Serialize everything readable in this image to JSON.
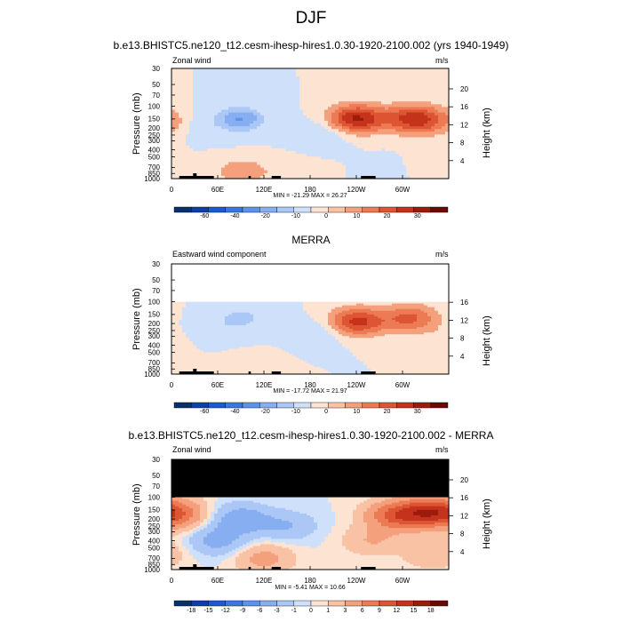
{
  "figure_title": "DJF",
  "panels": [
    {
      "title": "b.e13.BHISTC5.ne120_t12.cesm-ihesp-hires1.0.30-1920-2100.002 (yrs 1940-1949)",
      "left_string": "Zonal wind",
      "right_string": "m/s",
      "stats": "MIN = -21.29  MAX = 26.27",
      "ylabel_left": "Pressure (mb)",
      "ylabel_right": "Height (km)",
      "pressure_ticks": [
        "30",
        "50",
        "70",
        "100",
        "150",
        "200",
        "250",
        "300",
        "400",
        "500",
        "700",
        "850",
        "1000"
      ],
      "height_ticks": [
        "4",
        "8",
        "12",
        "16",
        "20"
      ],
      "x_ticks": [
        "0",
        "60E",
        "120E",
        "180",
        "120W",
        "60W"
      ],
      "colorbar_labels": [
        "-60",
        "-40",
        "-20",
        "-10",
        "0",
        "10",
        "20",
        "30"
      ]
    },
    {
      "title": "MERRA",
      "left_string": "Eastward wind component",
      "right_string": "m/s",
      "stats": "MIN = -17.72  MAX = 21.97",
      "ylabel_left": "Pressure (mb)",
      "ylabel_right": "Height (km)",
      "pressure_ticks": [
        "30",
        "50",
        "70",
        "100",
        "150",
        "200",
        "250",
        "300",
        "400",
        "500",
        "700",
        "850",
        "1000"
      ],
      "height_ticks": [
        "4",
        "8",
        "12",
        "16"
      ],
      "x_ticks": [
        "0",
        "60E",
        "120E",
        "180",
        "120W",
        "60W"
      ],
      "colorbar_labels": [
        "-60",
        "-40",
        "-20",
        "-10",
        "0",
        "10",
        "20",
        "30"
      ]
    },
    {
      "title": "b.e13.BHISTC5.ne120_t12.cesm-ihesp-hires1.0.30-1920-2100.002 - MERRA",
      "left_string": "Zonal wind",
      "right_string": "m/s",
      "stats": "MIN = -5.41  MAX = 10.66",
      "ylabel_left": "Pressure (mb)",
      "ylabel_right": "Height (km)",
      "pressure_ticks": [
        "30",
        "50",
        "70",
        "100",
        "150",
        "200",
        "250",
        "300",
        "400",
        "500",
        "700",
        "850",
        "1000"
      ],
      "height_ticks": [
        "4",
        "8",
        "12",
        "16",
        "20"
      ],
      "x_ticks": [
        "0",
        "60E",
        "120E",
        "180",
        "120W",
        "60W"
      ],
      "colorbar_labels": [
        "-18",
        "-15",
        "-12",
        "-9",
        "-6",
        "-3",
        "-1",
        "0",
        "1",
        "3",
        "6",
        "9",
        "12",
        "15",
        "18"
      ]
    }
  ],
  "colors": {
    "palette": [
      "#08306b",
      "#0c3fa8",
      "#1a5bd0",
      "#3a78e0",
      "#5d92ea",
      "#86aef0",
      "#abc7f5",
      "#cfe0fa",
      "#fde3d2",
      "#f9c2a5",
      "#f4a07c",
      "#ec7b54",
      "#dd5533",
      "#c5331c",
      "#9c1c0c",
      "#6b0a02"
    ],
    "missing": "#000000"
  },
  "chart_data": [
    {
      "type": "heatmap",
      "title": "b.e13.BHISTC5.ne120_t12.cesm-ihesp-hires1.0.30-1920-2100.002 (yrs 1940-1949)",
      "variable": "Zonal wind",
      "units": "m/s",
      "x_axis": "longitude 0-360",
      "y_axis": "pressure (mb), log scale, 1000 at bottom to 30 at top",
      "ylim_mb": [
        1000,
        30
      ],
      "min": -21.29,
      "max": 26.27,
      "colorbar_levels": [
        -60,
        -40,
        -20,
        -10,
        0,
        10,
        20,
        30
      ],
      "features": [
        {
          "lon": 90,
          "p": 150,
          "value": -20
        },
        {
          "lon": 30,
          "p": 180,
          "value": -6
        },
        {
          "lon": 195,
          "p": 240,
          "value": -6
        },
        {
          "lon": 240,
          "p": 150,
          "value": 26
        },
        {
          "lon": 315,
          "p": 150,
          "value": 23
        },
        {
          "lon": 5,
          "p": 170,
          "value": 8
        },
        {
          "lon": 90,
          "p": 780,
          "value": 8
        },
        {
          "lon": 155,
          "p": 820,
          "value": 3
        },
        {
          "lon": 330,
          "p": 700,
          "value": 5
        },
        {
          "lon": 300,
          "p": 750,
          "value": -3
        }
      ]
    },
    {
      "type": "heatmap",
      "title": "MERRA",
      "variable": "Eastward wind component",
      "units": "m/s",
      "x_axis": "longitude 0-360",
      "y_axis": "pressure (mb), log scale; data from 1000 to 100",
      "ylim_mb": [
        1000,
        30
      ],
      "min": -17.72,
      "max": 21.97,
      "colorbar_levels": [
        -60,
        -40,
        -20,
        -10,
        0,
        10,
        20,
        30
      ],
      "features": [
        {
          "lon": 90,
          "p": 170,
          "value": -12
        },
        {
          "lon": 40,
          "p": 250,
          "value": -6
        },
        {
          "lon": 195,
          "p": 260,
          "value": -5
        },
        {
          "lon": 240,
          "p": 190,
          "value": 22
        },
        {
          "lon": 310,
          "p": 170,
          "value": 16
        },
        {
          "lon": 10,
          "p": 300,
          "value": 4
        },
        {
          "lon": 100,
          "p": 850,
          "value": 4
        }
      ]
    },
    {
      "type": "heatmap",
      "title": "b.e13.BHISTC5.ne120_t12.cesm-ihesp-hires1.0.30-1920-2100.002 - MERRA",
      "variable": "Zonal wind",
      "units": "m/s",
      "x_axis": "longitude 0-360",
      "y_axis": "pressure (mb), log scale; missing above 100",
      "ylim_mb": [
        1000,
        30
      ],
      "min": -5.41,
      "max": 10.66,
      "colorbar_levels": [
        -18,
        -15,
        -12,
        -9,
        -6,
        -3,
        -1,
        0,
        1,
        3,
        6,
        9,
        12,
        15,
        18
      ],
      "features": [
        {
          "lon": 90,
          "p": 200,
          "value": -5
        },
        {
          "lon": 60,
          "p": 400,
          "value": -4
        },
        {
          "lon": 150,
          "p": 250,
          "value": -3
        },
        {
          "lon": 290,
          "p": 180,
          "value": 9
        },
        {
          "lon": 330,
          "p": 160,
          "value": 10
        },
        {
          "lon": 5,
          "p": 170,
          "value": 8
        },
        {
          "lon": 120,
          "p": 700,
          "value": 4
        },
        {
          "lon": 260,
          "p": 400,
          "value": 3
        },
        {
          "lon": 340,
          "p": 600,
          "value": 3
        }
      ]
    }
  ]
}
